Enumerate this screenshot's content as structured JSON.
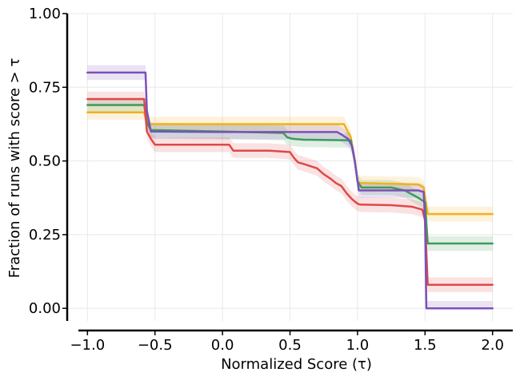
{
  "chart_data": {
    "type": "line",
    "style": "step performance profile with confidence bands",
    "xlabel": "Normalized Score (τ)",
    "ylabel": "Fraction of runs with score > τ",
    "xlim": [
      -1.15,
      2.15
    ],
    "ylim": [
      -0.04,
      1.0
    ],
    "xticks": [
      -1.0,
      -0.5,
      0.0,
      0.5,
      1.0,
      1.5,
      2.0
    ],
    "xtick_labels": [
      "−1.0",
      "−0.5",
      "0.0",
      "0.5",
      "1.0",
      "1.5",
      "2.0"
    ],
    "yticks": [
      0.0,
      0.25,
      0.5,
      0.75,
      1.0
    ],
    "ytick_labels": [
      "0.00",
      "0.25",
      "0.50",
      "0.75",
      "1.00"
    ],
    "grid": true,
    "series": [
      {
        "name": "orange",
        "color": "#f2b01e",
        "band": 0.025,
        "points": [
          [
            -1.0,
            0.665
          ],
          [
            -0.58,
            0.665
          ],
          [
            -0.57,
            0.645
          ],
          [
            -0.55,
            0.625
          ],
          [
            0.9,
            0.625
          ],
          [
            0.95,
            0.58
          ],
          [
            0.98,
            0.5
          ],
          [
            1.0,
            0.43
          ],
          [
            1.02,
            0.425
          ],
          [
            1.45,
            0.42
          ],
          [
            1.49,
            0.41
          ],
          [
            1.52,
            0.32
          ],
          [
            2.0,
            0.32
          ]
        ]
      },
      {
        "name": "green",
        "color": "#3e9a5a",
        "band": 0.025,
        "points": [
          [
            -1.0,
            0.69
          ],
          [
            -0.58,
            0.69
          ],
          [
            -0.56,
            0.63
          ],
          [
            -0.53,
            0.605
          ],
          [
            0.0,
            0.6
          ],
          [
            0.45,
            0.595
          ],
          [
            0.48,
            0.58
          ],
          [
            0.52,
            0.575
          ],
          [
            0.6,
            0.572
          ],
          [
            0.95,
            0.57
          ],
          [
            0.98,
            0.5
          ],
          [
            1.0,
            0.43
          ],
          [
            1.03,
            0.41
          ],
          [
            1.25,
            0.41
          ],
          [
            1.35,
            0.4
          ],
          [
            1.45,
            0.375
          ],
          [
            1.5,
            0.36
          ],
          [
            1.52,
            0.22
          ],
          [
            2.0,
            0.22
          ]
        ]
      },
      {
        "name": "red",
        "color": "#e04848",
        "band": 0.025,
        "points": [
          [
            -1.0,
            0.71
          ],
          [
            -0.58,
            0.71
          ],
          [
            -0.56,
            0.6
          ],
          [
            -0.53,
            0.575
          ],
          [
            -0.5,
            0.555
          ],
          [
            0.05,
            0.555
          ],
          [
            0.08,
            0.535
          ],
          [
            0.35,
            0.535
          ],
          [
            0.5,
            0.53
          ],
          [
            0.53,
            0.51
          ],
          [
            0.56,
            0.495
          ],
          [
            0.6,
            0.49
          ],
          [
            0.7,
            0.475
          ],
          [
            0.75,
            0.455
          ],
          [
            0.8,
            0.44
          ],
          [
            0.84,
            0.425
          ],
          [
            0.88,
            0.415
          ],
          [
            0.92,
            0.39
          ],
          [
            0.96,
            0.37
          ],
          [
            1.0,
            0.355
          ],
          [
            1.02,
            0.352
          ],
          [
            1.25,
            0.35
          ],
          [
            1.4,
            0.345
          ],
          [
            1.48,
            0.335
          ],
          [
            1.5,
            0.3
          ],
          [
            1.52,
            0.08
          ],
          [
            2.0,
            0.08
          ]
        ]
      },
      {
        "name": "purple",
        "color": "#7c50b8",
        "band": 0.025,
        "points": [
          [
            -1.0,
            0.8
          ],
          [
            -0.57,
            0.8
          ],
          [
            -0.56,
            0.67
          ],
          [
            -0.53,
            0.6
          ],
          [
            0.0,
            0.598
          ],
          [
            0.85,
            0.598
          ],
          [
            0.88,
            0.59
          ],
          [
            0.93,
            0.575
          ],
          [
            0.96,
            0.55
          ],
          [
            0.98,
            0.5
          ],
          [
            1.01,
            0.4
          ],
          [
            1.45,
            0.4
          ],
          [
            1.49,
            0.395
          ],
          [
            1.5,
            0.3
          ],
          [
            1.51,
            0.0
          ],
          [
            2.0,
            0.0
          ]
        ]
      }
    ]
  }
}
